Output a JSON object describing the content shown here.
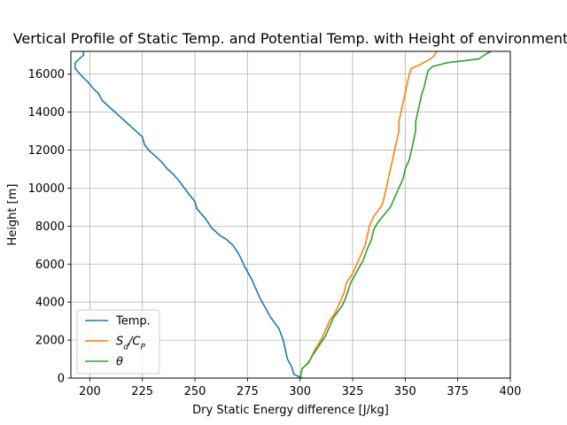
{
  "chart_data": {
    "type": "line",
    "title": "Vertical Profile of Static Temp. and Potential Temp. with Height of environment",
    "xlabel": "Dry Static Energy difference [J/kg]",
    "ylabel": "Height [m]",
    "xlim": [
      191,
      400
    ],
    "ylim": [
      0,
      17200
    ],
    "xticks": [
      "200",
      "225",
      "250",
      "275",
      "300",
      "325",
      "350",
      "375",
      "400"
    ],
    "xtick_values": [
      200,
      225,
      250,
      275,
      300,
      325,
      350,
      375,
      400
    ],
    "yticks": [
      "0",
      "2000",
      "4000",
      "6000",
      "8000",
      "10000",
      "12000",
      "14000",
      "16000"
    ],
    "ytick_values": [
      0,
      2000,
      4000,
      6000,
      8000,
      10000,
      12000,
      14000,
      16000
    ],
    "grid": true,
    "legend_position": "lower-left",
    "series": [
      {
        "name": "Temp.",
        "color": "#1f77b4",
        "points": [
          [
            301,
            0
          ],
          [
            297,
            200
          ],
          [
            296,
            600
          ],
          [
            294,
            1000
          ],
          [
            293,
            1500
          ],
          [
            292,
            2000
          ],
          [
            290,
            2600
          ],
          [
            286,
            3200
          ],
          [
            283,
            3800
          ],
          [
            281,
            4200
          ],
          [
            277,
            5200
          ],
          [
            274,
            5800
          ],
          [
            271,
            6500
          ],
          [
            268,
            7000
          ],
          [
            265,
            7300
          ],
          [
            262,
            7500
          ],
          [
            258,
            7900
          ],
          [
            255,
            8400
          ],
          [
            251,
            8900
          ],
          [
            250,
            9300
          ],
          [
            247,
            9700
          ],
          [
            245,
            10000
          ],
          [
            243,
            10300
          ],
          [
            240,
            10700
          ],
          [
            237,
            11000
          ],
          [
            234,
            11400
          ],
          [
            231,
            11700
          ],
          [
            228,
            12000
          ],
          [
            226,
            12300
          ],
          [
            225,
            12700
          ],
          [
            221,
            13100
          ],
          [
            217,
            13500
          ],
          [
            213,
            13900
          ],
          [
            209,
            14300
          ],
          [
            206,
            14600
          ],
          [
            204,
            15000
          ],
          [
            202,
            15200
          ],
          [
            199,
            15600
          ],
          [
            197,
            15800
          ],
          [
            193,
            16300
          ],
          [
            193,
            16600
          ],
          [
            195,
            16800
          ],
          [
            196,
            16900
          ],
          [
            197,
            17000
          ],
          [
            197,
            17200
          ]
        ]
      },
      {
        "name": "S_d/C_P",
        "label_prefix": "S",
        "label_sub1": "d",
        "label_mid": "/C",
        "label_sub2": "P",
        "color": "#ff7f0e",
        "points": [
          [
            300,
            0
          ],
          [
            301,
            500
          ],
          [
            303,
            700
          ],
          [
            305,
            1000
          ],
          [
            307,
            1500
          ],
          [
            310,
            2000
          ],
          [
            312,
            2500
          ],
          [
            314,
            3000
          ],
          [
            317,
            3500
          ],
          [
            319,
            4000
          ],
          [
            321,
            4500
          ],
          [
            322,
            5000
          ],
          [
            325,
            5500
          ],
          [
            327,
            6000
          ],
          [
            329,
            6500
          ],
          [
            331,
            7000
          ],
          [
            332,
            7500
          ],
          [
            333,
            8000
          ],
          [
            335,
            8500
          ],
          [
            337,
            8800
          ],
          [
            339,
            9100
          ],
          [
            340,
            9500
          ],
          [
            341,
            10000
          ],
          [
            342,
            10500
          ],
          [
            343,
            11000
          ],
          [
            344,
            11500
          ],
          [
            345,
            12000
          ],
          [
            346,
            12500
          ],
          [
            347,
            13000
          ],
          [
            347,
            13500
          ],
          [
            348,
            14000
          ],
          [
            349,
            14500
          ],
          [
            350,
            15000
          ],
          [
            351,
            15500
          ],
          [
            352,
            16000
          ],
          [
            353,
            16300
          ],
          [
            357,
            16500
          ],
          [
            362,
            16800
          ],
          [
            364,
            17000
          ],
          [
            365,
            17200
          ]
        ]
      },
      {
        "name": "θ",
        "color": "#2ca02c",
        "points": [
          [
            300,
            0
          ],
          [
            301,
            500
          ],
          [
            304,
            800
          ],
          [
            306,
            1200
          ],
          [
            309,
            1700
          ],
          [
            312,
            2200
          ],
          [
            314,
            2700
          ],
          [
            316,
            3200
          ],
          [
            320,
            3800
          ],
          [
            322,
            4300
          ],
          [
            324,
            5000
          ],
          [
            327,
            5600
          ],
          [
            330,
            6200
          ],
          [
            332,
            6800
          ],
          [
            334,
            7300
          ],
          [
            335,
            7800
          ],
          [
            337,
            8200
          ],
          [
            340,
            8600
          ],
          [
            343,
            9000
          ],
          [
            345,
            9500
          ],
          [
            347,
            10000
          ],
          [
            349,
            10500
          ],
          [
            350,
            11000
          ],
          [
            352,
            11500
          ],
          [
            353,
            12000
          ],
          [
            354,
            12500
          ],
          [
            355,
            13000
          ],
          [
            355,
            13500
          ],
          [
            356,
            14000
          ],
          [
            357,
            14500
          ],
          [
            358,
            15000
          ],
          [
            359,
            15300
          ],
          [
            360,
            15800
          ],
          [
            361,
            16200
          ],
          [
            363,
            16400
          ],
          [
            370,
            16600
          ],
          [
            385,
            16800
          ],
          [
            389,
            17100
          ],
          [
            391,
            17200
          ]
        ]
      }
    ]
  }
}
